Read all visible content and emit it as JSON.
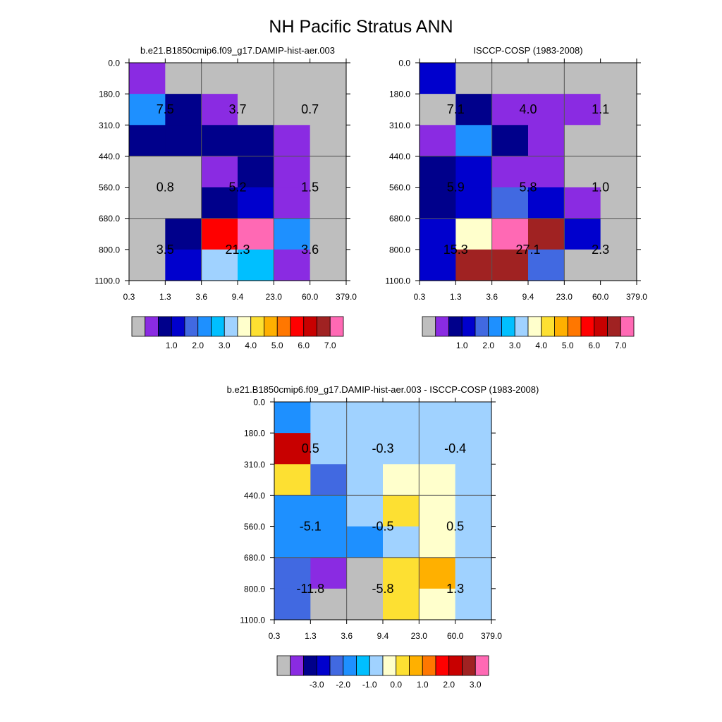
{
  "figure": {
    "title": "NH Pacific Stratus ANN"
  },
  "axes": {
    "tau_ticks": [
      "0.3",
      "1.3",
      "3.6",
      "9.4",
      "23.0",
      "60.0",
      "379.0"
    ],
    "pressure_ticks": [
      "0.0",
      "180.0",
      "310.0",
      "440.0",
      "560.0",
      "680.0",
      "800.0",
      "1100.0"
    ]
  },
  "colors": {
    "palette": [
      "#bebebe",
      "#8a2be2",
      "#00008b",
      "#0000cd",
      "#4169e1",
      "#1e90ff",
      "#00bfff",
      "#a0d2ff",
      "#ffffcc",
      "#fde032",
      "#ffb000",
      "#ff7700",
      "#ff0000",
      "#c80000",
      "#a02222",
      "#ff69b4"
    ],
    "main_bar_labels": [
      "1.0",
      "2.0",
      "3.0",
      "4.0",
      "5.0",
      "6.0",
      "7.0"
    ],
    "diff_bar_labels": [
      "-3.0",
      "-2.0",
      "-1.0",
      "0.0",
      "1.0",
      "2.0",
      "3.0"
    ]
  },
  "chart_data": [
    {
      "type": "heatmap",
      "title": "b.e21.B1850cmip6.f09_g17.DAMIP-hist-aer.003",
      "cell_color_index": [
        [
          1,
          0,
          0,
          0,
          0,
          0
        ],
        [
          5,
          2,
          1,
          0,
          0,
          0
        ],
        [
          2,
          2,
          2,
          2,
          1,
          0
        ],
        [
          0,
          0,
          1,
          2,
          1,
          0
        ],
        [
          0,
          0,
          2,
          3,
          1,
          0
        ],
        [
          0,
          2,
          12,
          15,
          5,
          0
        ],
        [
          0,
          3,
          7,
          6,
          1,
          0
        ]
      ],
      "annotations": [
        {
          "text": "7.5",
          "tau": "1.3",
          "pressure": "180.0-310.0"
        },
        {
          "text": "3.7",
          "tau": "3.6-23.0",
          "pressure": "180.0-310.0"
        },
        {
          "text": "0.7",
          "tau": "23.0-379.0",
          "pressure": "180.0-310.0"
        },
        {
          "text": "0.8",
          "tau": "0.3-3.6",
          "pressure": "440.0-680.0"
        },
        {
          "text": "5.2",
          "tau": "3.6-23.0",
          "pressure": "440.0-680.0"
        },
        {
          "text": "1.5",
          "tau": "23.0-379.0",
          "pressure": "440.0-680.0"
        },
        {
          "text": "3.5",
          "tau": "0.3-3.6",
          "pressure": "680.0-1100.0"
        },
        {
          "text": "21.3",
          "tau": "3.6-23.0",
          "pressure": "680.0-1100.0"
        },
        {
          "text": "3.6",
          "tau": "23.0-379.0",
          "pressure": "680.0-1100.0"
        }
      ]
    },
    {
      "type": "heatmap",
      "title": "ISCCP-COSP (1983-2008)",
      "cell_color_index": [
        [
          3,
          0,
          0,
          0,
          0,
          0
        ],
        [
          0,
          2,
          1,
          1,
          1,
          0
        ],
        [
          1,
          5,
          2,
          1,
          0,
          0
        ],
        [
          2,
          3,
          1,
          1,
          0,
          0
        ],
        [
          2,
          3,
          4,
          3,
          1,
          0
        ],
        [
          3,
          8,
          15,
          14,
          3,
          0
        ],
        [
          3,
          14,
          14,
          4,
          0,
          0
        ]
      ],
      "annotations": [
        {
          "text": "7.1",
          "tau": "0.3-3.6",
          "pressure": "180.0-310.0"
        },
        {
          "text": "4.0",
          "tau": "3.6-23.0",
          "pressure": "180.0-310.0"
        },
        {
          "text": "1.1",
          "tau": "23.0-379.0",
          "pressure": "180.0-310.0"
        },
        {
          "text": "5.9",
          "tau": "0.3-3.6",
          "pressure": "440.0-680.0"
        },
        {
          "text": "5.8",
          "tau": "3.6-23.0",
          "pressure": "440.0-680.0"
        },
        {
          "text": "1.0",
          "tau": "23.0-379.0",
          "pressure": "440.0-680.0"
        },
        {
          "text": "15.3",
          "tau": "0.3-3.6",
          "pressure": "680.0-1100.0"
        },
        {
          "text": "27.1",
          "tau": "3.6-23.0",
          "pressure": "680.0-1100.0"
        },
        {
          "text": "2.3",
          "tau": "23.0-379.0",
          "pressure": "680.0-1100.0"
        }
      ]
    },
    {
      "type": "heatmap",
      "title": "b.e21.B1850cmip6.f09_g17.DAMIP-hist-aer.003 - ISCCP-COSP (1983-2008)",
      "cell_color_index": [
        [
          5,
          7,
          7,
          7,
          7,
          7
        ],
        [
          13,
          7,
          7,
          7,
          7,
          7
        ],
        [
          9,
          4,
          7,
          8,
          8,
          7
        ],
        [
          5,
          5,
          7,
          9,
          8,
          7
        ],
        [
          5,
          5,
          5,
          7,
          8,
          7
        ],
        [
          4,
          1,
          0,
          9,
          10,
          7
        ],
        [
          4,
          0,
          0,
          9,
          8,
          7
        ]
      ],
      "annotations": [
        {
          "text": "0.5",
          "tau": "0.3-3.6",
          "pressure": "180.0-310.0"
        },
        {
          "text": "-0.3",
          "tau": "3.6-23.0",
          "pressure": "180.0-310.0"
        },
        {
          "text": "-0.4",
          "tau": "23.0-379.0",
          "pressure": "180.0-310.0"
        },
        {
          "text": "-5.1",
          "tau": "0.3-3.6",
          "pressure": "440.0-680.0"
        },
        {
          "text": "-0.5",
          "tau": "3.6-23.0",
          "pressure": "440.0-680.0"
        },
        {
          "text": "0.5",
          "tau": "23.0-379.0",
          "pressure": "440.0-680.0"
        },
        {
          "text": "-11.8",
          "tau": "0.3-3.6",
          "pressure": "680.0-1100.0"
        },
        {
          "text": "-5.8",
          "tau": "3.6-23.0",
          "pressure": "680.0-1100.0"
        },
        {
          "text": "1.3",
          "tau": "23.0-379.0",
          "pressure": "680.0-1100.0"
        }
      ]
    }
  ]
}
